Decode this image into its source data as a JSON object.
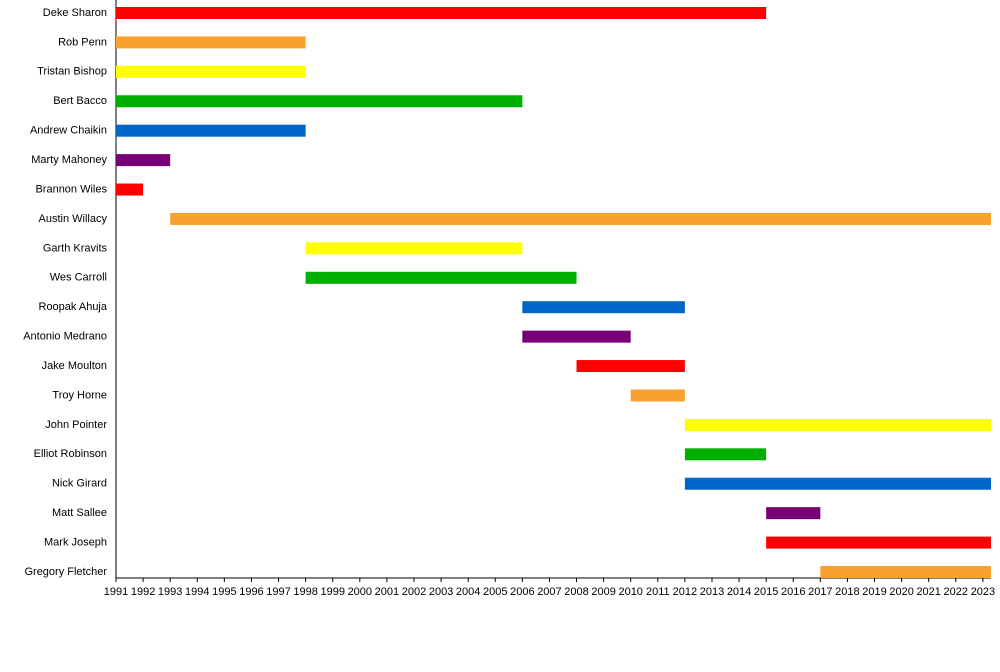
{
  "chart_data": {
    "type": "timeline",
    "categories": [
      "Deke Sharon",
      "Rob Penn",
      "Tristan Bishop",
      "Bert Bacco",
      "Andrew Chaikin",
      "Marty Mahoney",
      "Brannon Wiles",
      "Austin Willacy",
      "Garth Kravits",
      "Wes Carroll",
      "Roopak Ahuja",
      "Antonio Medrano",
      "Jake Moulton",
      "Troy Horne",
      "John Pointer",
      "Elliot Robinson",
      "Nick Girard",
      "Matt Sallee",
      "Mark Joseph",
      "Gregory Fletcher"
    ],
    "start": [
      1991,
      1991,
      1991,
      1991,
      1991,
      1991,
      1991,
      1993,
      1998,
      1998,
      2006,
      2006,
      2008,
      2010,
      2012,
      2012,
      2012,
      2015,
      2015,
      2017
    ],
    "end": [
      2015,
      1998,
      1998,
      2006,
      1998,
      1993,
      1992,
      2023.3,
      2006,
      2008,
      2012,
      2010,
      2012,
      2012,
      2023.3,
      2015,
      2023.3,
      2017,
      2023.3,
      2023.3
    ],
    "colors": [
      "#ff0000",
      "#f9a12f",
      "#ffff00",
      "#00b000",
      "#0066cc",
      "#770077",
      "#ff0000",
      "#f9a12f",
      "#ffff00",
      "#00b000",
      "#0066cc",
      "#770077",
      "#ff0000",
      "#f9a12f",
      "#ffff00",
      "#00b000",
      "#0066cc",
      "#770077",
      "#ff0000",
      "#f9a12f"
    ],
    "xlim": [
      1991,
      2023.3
    ],
    "xticks": [
      1991,
      1992,
      1993,
      1994,
      1995,
      1996,
      1997,
      1998,
      1999,
      2000,
      2001,
      2002,
      2003,
      2004,
      2005,
      2006,
      2007,
      2008,
      2009,
      2010,
      2011,
      2012,
      2013,
      2014,
      2015,
      2016,
      2017,
      2018,
      2019,
      2020,
      2021,
      2022,
      2023
    ]
  }
}
